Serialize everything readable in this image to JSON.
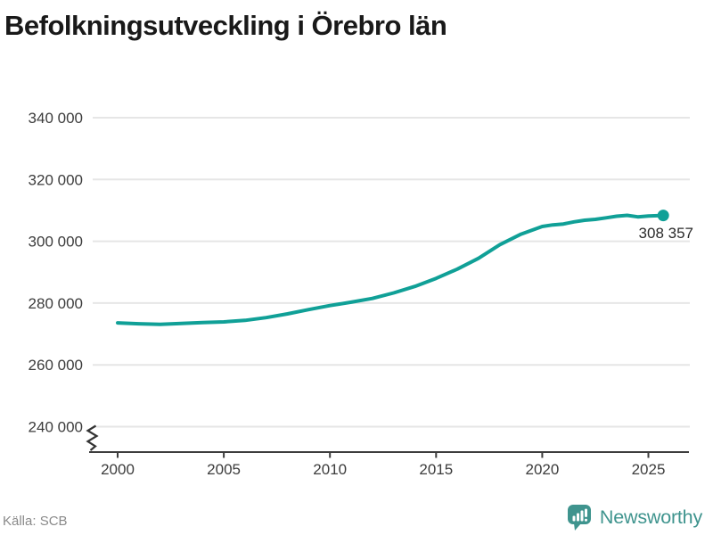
{
  "title": "Befolkningsutveckling i Örebro län",
  "end_label": "308 357",
  "footer": {
    "source_label": "Källa: SCB",
    "brand_name": "Newsworthy"
  },
  "colors": {
    "line": "#10a097",
    "grid": "#e6e6e6",
    "axis": "#3d3d3d",
    "tick_text": "#3c3c3c",
    "title_text": "#191919",
    "annotation_text": "#2a2a2a",
    "source_text": "#8a8a8a",
    "brand_teal": "#3f948e"
  },
  "chart_data": {
    "type": "line",
    "title": "Befolkningsutveckling i Örebro län",
    "xlabel": "",
    "ylabel": "",
    "grid": "horizontal",
    "legend": "none",
    "y_axis_break": true,
    "x_range": [
      1998.7,
      2027
    ],
    "ylim": [
      236000,
      345000
    ],
    "xticks": [
      {
        "value": 2000,
        "label": "2000"
      },
      {
        "value": 2005,
        "label": "2005"
      },
      {
        "value": 2010,
        "label": "2010"
      },
      {
        "value": 2015,
        "label": "2015"
      },
      {
        "value": 2020,
        "label": "2020"
      },
      {
        "value": 2025,
        "label": "2025"
      }
    ],
    "yticks": [
      {
        "value": 240000,
        "label": "240 000"
      },
      {
        "value": 260000,
        "label": "260 000"
      },
      {
        "value": 280000,
        "label": "280 000"
      },
      {
        "value": 300000,
        "label": "300 000"
      },
      {
        "value": 320000,
        "label": "320 000"
      },
      {
        "value": 340000,
        "label": "340 000"
      }
    ],
    "series": [
      {
        "x": [
          2000,
          2001,
          2002,
          2003,
          2004,
          2005,
          2006,
          2007,
          2008,
          2009,
          2010,
          2011,
          2012,
          2013,
          2014,
          2015,
          2016,
          2017,
          2018,
          2019,
          2020,
          2020.5,
          2021,
          2021.5,
          2022,
          2022.5,
          2023,
          2023.5,
          2024,
          2024.5,
          2025,
          2025.7
        ],
        "values": [
          273600,
          273300,
          273100,
          273400,
          273700,
          273900,
          274400,
          275300,
          276500,
          277900,
          279200,
          280300,
          281500,
          283300,
          285400,
          288000,
          291000,
          294500,
          298900,
          302300,
          304800,
          305300,
          305600,
          306300,
          306800,
          307100,
          307600,
          308100,
          308400,
          307900,
          308200,
          308357
        ],
        "end_point": {
          "x": 2025.7,
          "value": 308357,
          "label": "308 357"
        }
      }
    ]
  }
}
